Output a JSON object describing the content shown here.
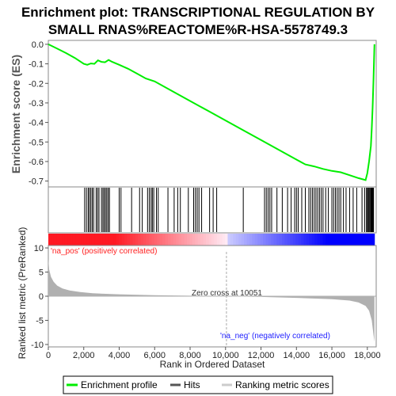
{
  "title_line1": "Enrichment plot: TRANSCRIPTIONAL REGULATION BY",
  "title_line2": "SMALL RNAS%REACTOME%R-HSA-5578749.3",
  "colors": {
    "es_line": "#00ee00",
    "hits": "#000000",
    "pos_label": "#ff2020",
    "neg_label": "#2020ff",
    "metric_fill": "#b0b0b0",
    "red_band": "#ff0000",
    "blue_band": "#0000ff"
  },
  "annotations": {
    "pos_label": "'na_pos' (positively correlated)",
    "neg_label": "'na_neg' (negatively correlated)",
    "zero_cross": "Zero cross at 10051"
  },
  "legend": {
    "items": [
      {
        "label": "Enrichment profile",
        "color": "#00ee00"
      },
      {
        "label": "Hits",
        "color": "#555555"
      },
      {
        "label": "Ranking metric scores",
        "color": "#cccccc"
      }
    ]
  },
  "chart_data": [
    {
      "type": "line",
      "name": "enrichment-profile",
      "ylabel": "Enrichment score (ES)",
      "xlim": [
        0,
        18500
      ],
      "ylim": [
        -0.73,
        0.02
      ],
      "yticks": [
        "0.0",
        "-0.1",
        "-0.2",
        "-0.3",
        "-0.4",
        "-0.5",
        "-0.6",
        "-0.7"
      ],
      "grid": false,
      "x": [
        0,
        500,
        1000,
        1500,
        2000,
        2200,
        2400,
        2600,
        2800,
        3000,
        3200,
        3400,
        3600,
        4000,
        4500,
        5000,
        5500,
        6000,
        7000,
        8000,
        9000,
        10000,
        11000,
        12000,
        13000,
        14000,
        14500,
        15000,
        15500,
        16000,
        16500,
        17000,
        17500,
        17900,
        18000,
        18100,
        18200,
        18250,
        18300,
        18350,
        18400
      ],
      "y": [
        0.0,
        -0.022,
        -0.045,
        -0.07,
        -0.1,
        -0.105,
        -0.098,
        -0.1,
        -0.082,
        -0.09,
        -0.092,
        -0.08,
        -0.09,
        -0.105,
        -0.125,
        -0.15,
        -0.175,
        -0.19,
        -0.24,
        -0.29,
        -0.34,
        -0.39,
        -0.44,
        -0.49,
        -0.54,
        -0.59,
        -0.615,
        -0.625,
        -0.638,
        -0.648,
        -0.655,
        -0.67,
        -0.685,
        -0.695,
        -0.66,
        -0.6,
        -0.52,
        -0.43,
        -0.32,
        -0.18,
        0.0
      ]
    },
    {
      "type": "hits",
      "name": "hits",
      "x": [
        2050,
        2150,
        2250,
        2320,
        2400,
        2480,
        2560,
        2700,
        2780,
        2860,
        3000,
        3080,
        3150,
        3230,
        3300,
        3380,
        3450,
        4000,
        4100,
        4700,
        5150,
        5300,
        5600,
        5700,
        5800,
        5870,
        5950,
        6100,
        6200,
        6750,
        7100,
        7300,
        7450,
        7900,
        8200,
        8300,
        8400,
        8500,
        8650,
        9100,
        9300,
        9500,
        11000,
        12200,
        12300,
        12400,
        12500,
        12600,
        12900,
        13200,
        13500,
        13700,
        13900,
        14000,
        14100,
        14300,
        14500,
        14700,
        14800,
        14900,
        15000,
        15100,
        15200,
        15300,
        15400,
        15500,
        15650,
        15800,
        16000,
        16100,
        16200,
        16300,
        16400,
        16500,
        16650,
        16800,
        17000,
        17200,
        17400,
        17700,
        17850,
        17950,
        18000,
        18050,
        18100,
        18150,
        18200,
        18230,
        18260,
        18290,
        18320,
        18350
      ]
    },
    {
      "type": "area",
      "name": "ranked-list-metric",
      "ylabel": "Ranked list metric (PreRanked)",
      "xlabel": "Rank in Ordered Dataset",
      "xlim": [
        0,
        18500
      ],
      "ylim": [
        -10.5,
        10.5
      ],
      "yticks": [
        10,
        5,
        0,
        -5,
        -10
      ],
      "xticks": [
        0,
        2000,
        4000,
        6000,
        8000,
        10000,
        12000,
        14000,
        16000,
        18000
      ],
      "x": [
        0,
        50,
        150,
        300,
        500,
        800,
        1200,
        1800,
        2500,
        4000,
        6000,
        8000,
        10051,
        12000,
        14000,
        16000,
        17000,
        17500,
        17900,
        18100,
        18250,
        18350,
        18400
      ],
      "y": [
        7.8,
        5.5,
        4.0,
        3.0,
        2.2,
        1.6,
        1.2,
        0.85,
        0.6,
        0.4,
        0.2,
        0.1,
        0.0,
        -0.15,
        -0.35,
        -0.6,
        -0.9,
        -1.3,
        -2.0,
        -3.0,
        -5.0,
        -8.0,
        -9.5
      ]
    }
  ]
}
